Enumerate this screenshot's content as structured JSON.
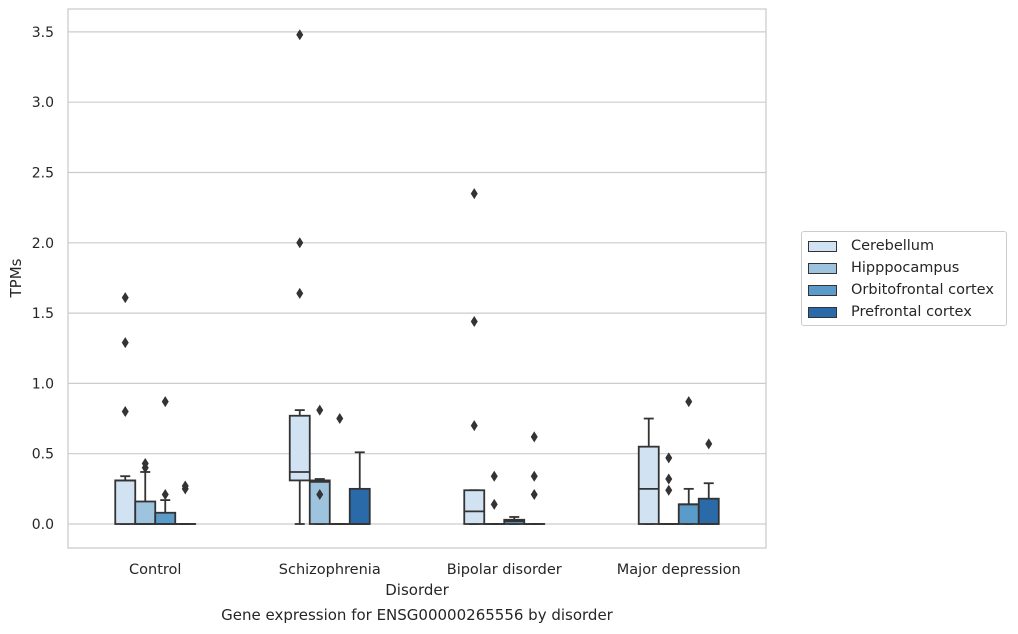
{
  "chart_data": {
    "type": "box",
    "title": "",
    "xlabel": "Disorder",
    "ylabel": "TPMs",
    "ylim": [
      -0.17,
      3.66
    ],
    "yticks": [
      "0.0",
      "0.5",
      "1.0",
      "1.5",
      "2.0",
      "2.5",
      "3.0",
      "3.5"
    ],
    "grid": true,
    "legend_position": "right",
    "categories": [
      "Control",
      "Schizophrenia",
      "Bipolar disorder",
      "Major depression"
    ],
    "series": [
      {
        "name": "Cerebellum",
        "color": "#d1e2f2",
        "boxes": [
          {
            "q1": 0.0,
            "median": 0.31,
            "q3": 0.31,
            "whislo": 0.0,
            "whishi": 0.34,
            "outliers": [
              1.61,
              1.29,
              0.8
            ]
          },
          {
            "q1": 0.31,
            "median": 0.37,
            "q3": 0.77,
            "whislo": 0.0,
            "whishi": 0.81,
            "outliers": [
              3.48,
              2.0,
              1.64
            ]
          },
          {
            "q1": 0.0,
            "median": 0.09,
            "q3": 0.24,
            "whislo": 0.0,
            "whishi": 0.24,
            "outliers": [
              2.35,
              1.44,
              0.7
            ]
          },
          {
            "q1": 0.0,
            "median": 0.25,
            "q3": 0.55,
            "whislo": 0.0,
            "whishi": 0.75,
            "outliers": []
          }
        ]
      },
      {
        "name": "Hipppocampus",
        "color": "#9dc3de",
        "boxes": [
          {
            "q1": 0.0,
            "median": 0.0,
            "q3": 0.16,
            "whislo": 0.0,
            "whishi": 0.37,
            "outliers": [
              0.43,
              0.4
            ]
          },
          {
            "q1": 0.0,
            "median": 0.3,
            "q3": 0.31,
            "whislo": 0.0,
            "whishi": 0.32,
            "outliers": [
              0.81,
              0.21
            ]
          },
          {
            "q1": 0.0,
            "median": 0.0,
            "q3": 0.0,
            "whislo": 0.0,
            "whishi": 0.0,
            "outliers": [
              0.34,
              0.14
            ]
          },
          {
            "q1": 0.0,
            "median": 0.0,
            "q3": 0.0,
            "whislo": 0.0,
            "whishi": 0.0,
            "outliers": [
              0.47,
              0.32,
              0.24
            ]
          }
        ]
      },
      {
        "name": "Orbitofrontal cortex",
        "color": "#5a9bc9",
        "boxes": [
          {
            "q1": 0.0,
            "median": 0.0,
            "q3": 0.08,
            "whislo": 0.0,
            "whishi": 0.17,
            "outliers": [
              0.87,
              0.21
            ]
          },
          {
            "q1": 0.0,
            "median": 0.0,
            "q3": 0.0,
            "whislo": 0.0,
            "whishi": 0.0,
            "outliers": [
              0.75
            ]
          },
          {
            "q1": 0.0,
            "median": 0.02,
            "q3": 0.03,
            "whislo": 0.0,
            "whishi": 0.05,
            "outliers": []
          },
          {
            "q1": 0.0,
            "median": 0.14,
            "q3": 0.14,
            "whislo": 0.0,
            "whishi": 0.25,
            "outliers": [
              0.87
            ]
          }
        ]
      },
      {
        "name": "Prefrontal cortex",
        "color": "#2b6aa8",
        "boxes": [
          {
            "q1": 0.0,
            "median": 0.0,
            "q3": 0.0,
            "whislo": 0.0,
            "whishi": 0.0,
            "outliers": [
              0.27,
              0.25
            ]
          },
          {
            "q1": 0.0,
            "median": 0.0,
            "q3": 0.25,
            "whislo": 0.0,
            "whishi": 0.51,
            "outliers": []
          },
          {
            "q1": 0.0,
            "median": 0.0,
            "q3": 0.0,
            "whislo": 0.0,
            "whishi": 0.0,
            "outliers": [
              0.62,
              0.34,
              0.21
            ]
          },
          {
            "q1": 0.0,
            "median": 0.0,
            "q3": 0.18,
            "whislo": 0.0,
            "whishi": 0.29,
            "outliers": [
              0.57
            ]
          }
        ]
      }
    ]
  },
  "caption": "Gene expression for ENSG00000265556 by disorder"
}
